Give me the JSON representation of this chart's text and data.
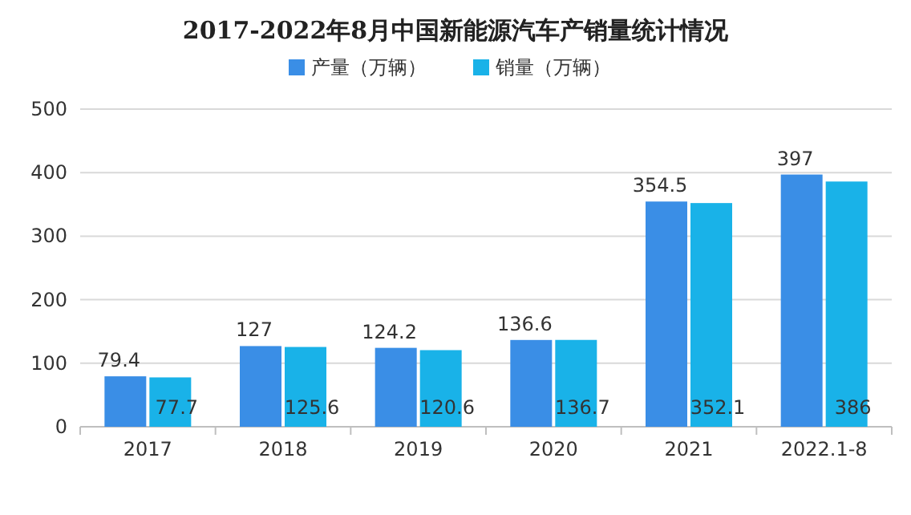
{
  "chart_data": {
    "type": "bar",
    "title": "2017-2022年8月中国新能源汽车产销量统计情况",
    "categories": [
      "2017",
      "2018",
      "2019",
      "2020",
      "2021",
      "2022.1-8"
    ],
    "series": [
      {
        "name": "产量（万辆）",
        "color": "#3a8ee6",
        "values": [
          79.4,
          127,
          124.2,
          136.6,
          354.5,
          397
        ]
      },
      {
        "name": "销量（万辆）",
        "color": "#19b2e8",
        "values": [
          77.7,
          125.6,
          120.6,
          136.7,
          352.1,
          386
        ]
      }
    ],
    "ylim": [
      0,
      500
    ],
    "yticks": [
      0,
      100,
      200,
      300,
      400,
      500
    ],
    "grid": "y",
    "legend": "top",
    "data_labels": true
  }
}
